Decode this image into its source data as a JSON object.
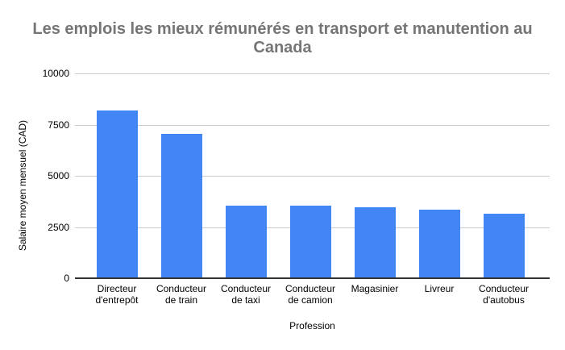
{
  "chart_data": {
    "type": "bar",
    "title": "Les emplois les mieux rémunérés en transport et manutention au Canada",
    "title_lines": [
      "Les emplois les mieux rémunérés en transport et manutention au",
      "Canada"
    ],
    "xlabel": "Profession",
    "ylabel": "Salaire moyen mensuel (CAD)",
    "categories": [
      "Directeur d'entrepôt",
      "Conducteur de train",
      "Conducteur de taxi",
      "Conducteur de camion",
      "Magasinier",
      "Livreur",
      "Conducteur d'autobus"
    ],
    "category_lines": [
      [
        "Directeur",
        "d'entrepôt"
      ],
      [
        "Conducteur",
        "de train"
      ],
      [
        "Conducteur",
        "de taxi"
      ],
      [
        "Conducteur",
        "de camion"
      ],
      [
        "Magasinier"
      ],
      [
        "Livreur"
      ],
      [
        "Conducteur",
        "d'autobus"
      ]
    ],
    "values": [
      8200,
      7050,
      3550,
      3550,
      3480,
      3350,
      3160
    ],
    "ylim": [
      0,
      10000
    ],
    "yticks": [
      0,
      2500,
      5000,
      7500,
      10000
    ],
    "grid": true,
    "legend_position": "none"
  },
  "colors": {
    "bar": "#4285f4",
    "title": "#757575",
    "gridline": "#cccccc",
    "axis_line": "#333333",
    "tick_label": "#000000",
    "background": "#ffffff"
  }
}
